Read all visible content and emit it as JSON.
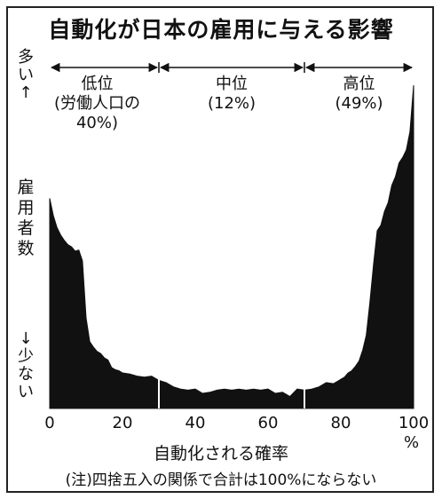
{
  "title": "自動化が日本の雇用に与える影響",
  "y_top_label": "多い↑",
  "y_mid_label": "雇用者数",
  "y_bot_label": "↓少ない",
  "x_label": "自動化される確率",
  "x_unit": "%",
  "note": "(注)四捨五入の関係で合計は100%にならない",
  "bands": [
    {
      "name": "低位",
      "detail": "(労働人口の40%)"
    },
    {
      "name": "中位",
      "detail": "(12%)"
    },
    {
      "name": "高位",
      "detail": "(49%)"
    }
  ],
  "chart_data": {
    "type": "area",
    "title": "自動化が日本の雇用に与える影響",
    "xlabel": "自動化される確率",
    "ylabel": "雇用者数",
    "xlim": [
      0,
      100
    ],
    "x_ticks": [
      "0",
      "20",
      "40",
      "60",
      "80",
      "100"
    ],
    "y_axis": "relative (no numeric ticks)",
    "color": "#111111",
    "dividers_x": [
      30,
      70
    ],
    "x": [
      0,
      1,
      2,
      3,
      4,
      5,
      6,
      7,
      8,
      9,
      10,
      11,
      12,
      13,
      14,
      15,
      16,
      17,
      18,
      19,
      20,
      22,
      24,
      26,
      28,
      30,
      32,
      34,
      36,
      38,
      40,
      42,
      44,
      46,
      48,
      50,
      52,
      54,
      56,
      58,
      60,
      62,
      64,
      66,
      68,
      70,
      72,
      74,
      76,
      78,
      80,
      81,
      82,
      83,
      84,
      85,
      86,
      87,
      88,
      89,
      90,
      91,
      92,
      93,
      94,
      95,
      96,
      97,
      98,
      99,
      100
    ],
    "values": [
      65,
      60,
      56,
      54,
      52,
      51,
      50,
      49,
      49,
      46,
      28,
      21,
      19,
      18,
      17,
      16,
      15,
      13,
      12,
      12,
      11,
      11,
      10,
      10,
      10,
      9,
      8,
      7,
      6,
      6,
      6,
      5,
      5,
      6,
      6,
      6,
      6,
      6,
      6,
      6,
      6,
      5,
      5,
      4,
      6,
      6,
      6,
      7,
      8,
      8,
      9,
      10,
      11,
      12,
      13,
      15,
      18,
      23,
      33,
      45,
      55,
      57,
      61,
      64,
      69,
      72,
      76,
      78,
      80,
      86,
      100
    ],
    "bands": [
      {
        "name": "低位",
        "range": [
          0,
          30
        ],
        "share": "40%"
      },
      {
        "name": "中位",
        "range": [
          30,
          70
        ],
        "share": "12%"
      },
      {
        "name": "高位",
        "range": [
          70,
          100
        ],
        "share": "49%"
      }
    ]
  }
}
